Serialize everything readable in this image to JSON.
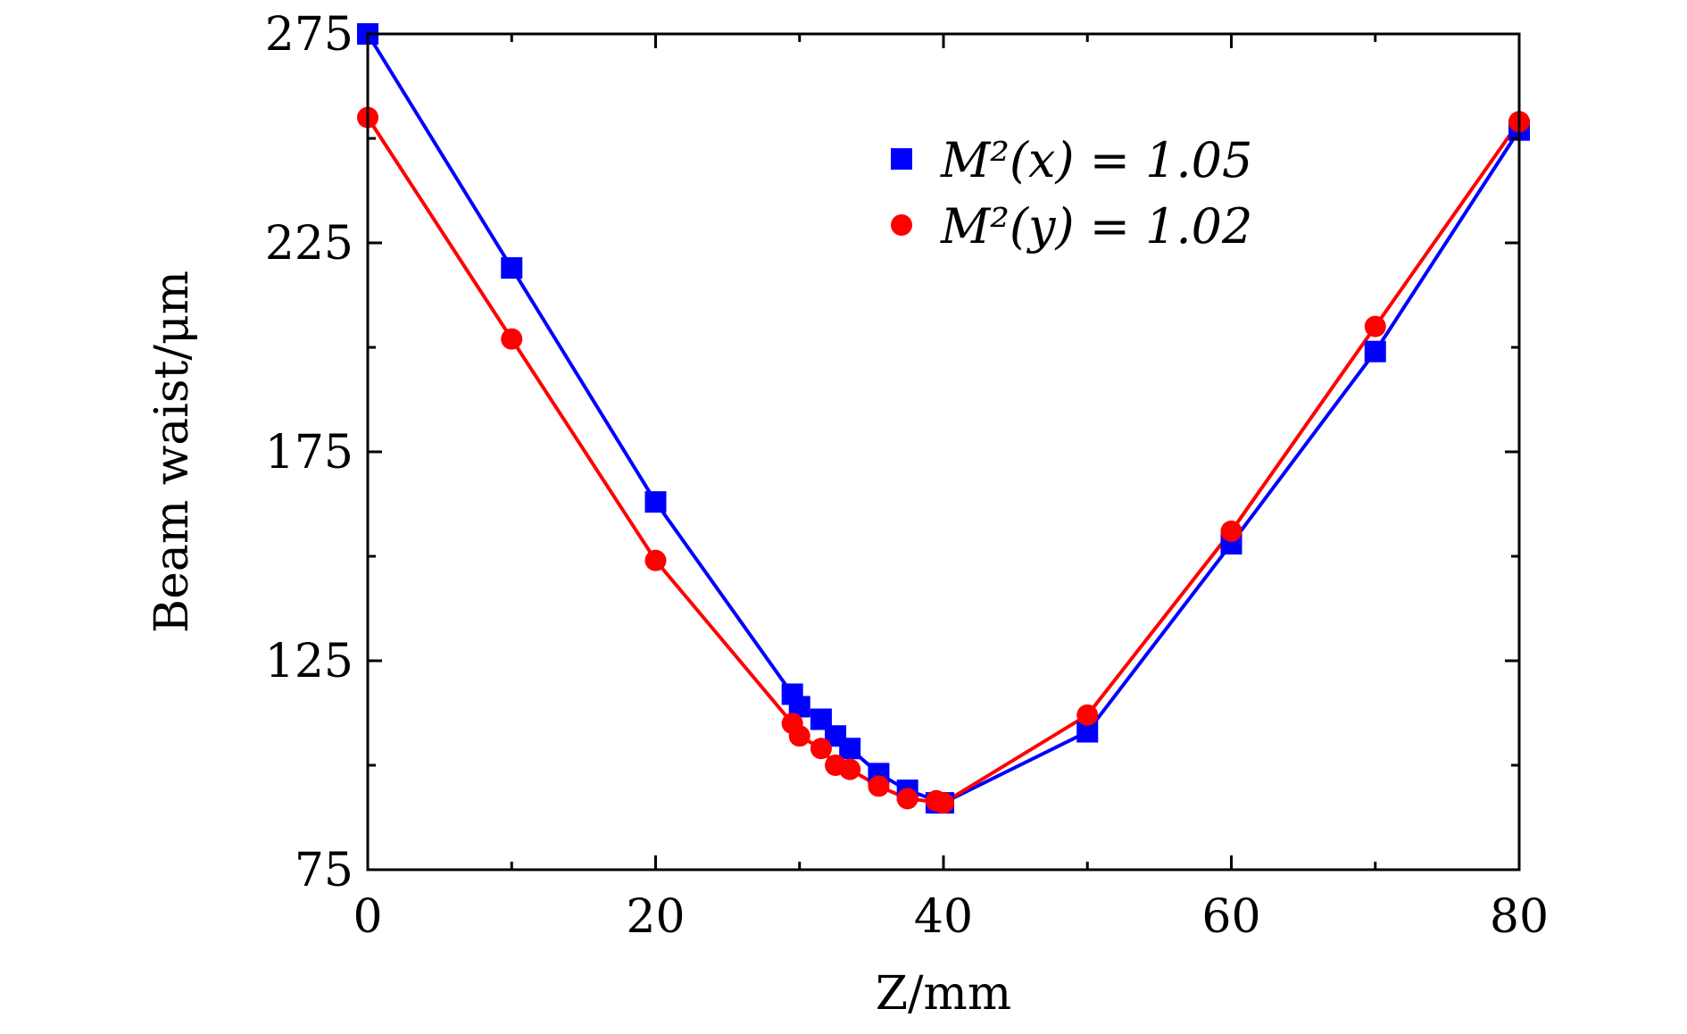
{
  "chart_data": {
    "type": "scatter",
    "xlabel": "Z/mm",
    "ylabel": "Beam waist/μm",
    "xlim": [
      0,
      80
    ],
    "ylim": [
      75,
      275
    ],
    "x_ticks": [
      0,
      20,
      40,
      60,
      80
    ],
    "x_tick_labels": [
      "0",
      "20",
      "40",
      "60",
      "80"
    ],
    "y_ticks": [
      75,
      125,
      175,
      225,
      275
    ],
    "y_tick_labels": [
      "75",
      "125",
      "175",
      "225",
      "275"
    ],
    "x_minor_ticks": [
      10,
      30,
      50,
      70
    ],
    "y_minor_ticks": [
      100,
      150,
      200,
      250
    ],
    "legend_position": "top-right",
    "grid": false,
    "series": [
      {
        "name": "M²(x) = 1.05",
        "marker": "square",
        "color": "#0000ff",
        "x": [
          0,
          10,
          20,
          29.5,
          30,
          31.5,
          32.5,
          33.5,
          35.5,
          37.5,
          39.5,
          40
        ],
        "y": [
          275,
          219,
          163,
          117,
          114,
          111,
          107,
          104,
          98,
          94,
          91,
          91
        ]
      },
      {
        "name": "M²(y) = 1.02",
        "marker": "circle",
        "color": "#ff0000",
        "x": [
          0,
          10,
          20,
          29.5,
          30,
          31.5,
          32.5,
          33.5,
          35.5,
          37.5,
          39.5,
          40,
          50,
          60,
          70,
          80
        ],
        "y": [
          255,
          202,
          149,
          110,
          107,
          104,
          100,
          99,
          95,
          92,
          91.5,
          91,
          112,
          156,
          205,
          254
        ]
      }
    ],
    "fit_lines": [
      {
        "color": "#0000ff",
        "x": [
          0,
          10,
          20,
          29.5,
          30,
          31.5,
          32.5,
          33.5,
          35.5,
          37.5,
          40,
          50,
          60,
          70,
          80
        ],
        "y": [
          275,
          219,
          163,
          117,
          114,
          111,
          107,
          104,
          98,
          94,
          91,
          108,
          153,
          199,
          252
        ]
      },
      {
        "color": "#ff0000",
        "x": [
          0,
          10,
          20,
          29.5,
          30,
          31.5,
          32.5,
          33.5,
          35.5,
          37.5,
          40,
          50,
          60,
          70,
          80
        ],
        "y": [
          255,
          202,
          149,
          110,
          107,
          104,
          100,
          99,
          95,
          92,
          91,
          112,
          156,
          205,
          254
        ]
      }
    ],
    "extra_blue_points": {
      "x": [
        50,
        60,
        70,
        80
      ],
      "y": [
        108,
        153,
        199,
        252
      ]
    }
  }
}
